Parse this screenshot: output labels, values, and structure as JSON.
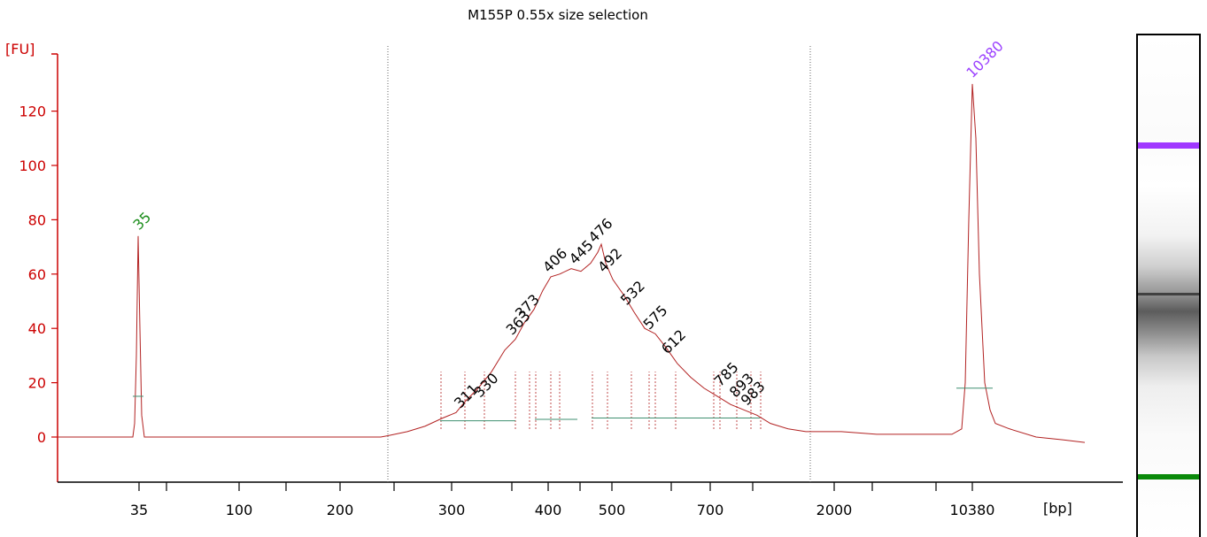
{
  "chart_data": {
    "type": "line",
    "title": "M155P 0.55x size selection",
    "ylabel": "[FU]",
    "xlabel": "[bp]",
    "ylim": [
      -15,
      130
    ],
    "yticks": [
      0,
      20,
      40,
      60,
      80,
      100,
      120
    ],
    "xtick_labels": [
      "35",
      "100",
      "200",
      "300",
      "400",
      "500",
      "700",
      "2000",
      "10380"
    ],
    "grid": false,
    "markers": [
      {
        "label": "35",
        "size_bp": 35,
        "fu": 74,
        "color": "#1a8c1a"
      },
      {
        "label": "10380",
        "size_bp": 10380,
        "fu": 130,
        "color": "#9b40ff"
      }
    ],
    "peaks": [
      {
        "label": "311",
        "size_bp": 311,
        "fu": 9
      },
      {
        "label": "330",
        "size_bp": 330,
        "fu": 13
      },
      {
        "label": "363",
        "size_bp": 363,
        "fu": 36
      },
      {
        "label": "373",
        "size_bp": 373,
        "fu": 42
      },
      {
        "label": "406",
        "size_bp": 406,
        "fu": 59
      },
      {
        "label": "445",
        "size_bp": 445,
        "fu": 62
      },
      {
        "label": "476",
        "size_bp": 476,
        "fu": 70
      },
      {
        "label": "492",
        "size_bp": 492,
        "fu": 59
      },
      {
        "label": "532",
        "size_bp": 532,
        "fu": 47
      },
      {
        "label": "575",
        "size_bp": 575,
        "fu": 38
      },
      {
        "label": "612",
        "size_bp": 612,
        "fu": 29
      },
      {
        "label": "785",
        "size_bp": 785,
        "fu": 17
      },
      {
        "label": "893",
        "size_bp": 893,
        "fu": 13
      },
      {
        "label": "983",
        "size_bp": 983,
        "fu": 10
      }
    ],
    "colors": {
      "axis": "#cc0000",
      "trace": "#b22222",
      "baseline": "#3f8f70",
      "text": "#000000"
    }
  }
}
